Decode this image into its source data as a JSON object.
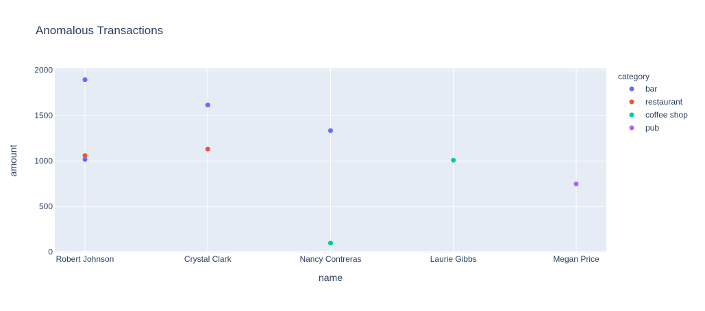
{
  "chart_data": {
    "type": "scatter",
    "title": "Anomalous Transactions",
    "xlabel": "name",
    "ylabel": "amount",
    "categories": [
      "Robert Johnson",
      "Crystal Clark",
      "Nancy Contreras",
      "Laurie Gibbs",
      "Megan Price"
    ],
    "ylim": [
      -10,
      2020
    ],
    "yticks": [
      0,
      500,
      1000,
      1500,
      2000
    ],
    "grid": true,
    "legend": {
      "title": "category",
      "placement": "right"
    },
    "series": [
      {
        "name": "bar",
        "color": "#636efa",
        "points": [
          {
            "x": "Robert Johnson",
            "y": 1895
          },
          {
            "x": "Robert Johnson",
            "y": 1018
          },
          {
            "x": "Crystal Clark",
            "y": 1617
          },
          {
            "x": "Nancy Contreras",
            "y": 1335
          }
        ]
      },
      {
        "name": "restaurant",
        "color": "#ef553b",
        "points": [
          {
            "x": "Robert Johnson",
            "y": 1060
          },
          {
            "x": "Crystal Clark",
            "y": 1132
          }
        ]
      },
      {
        "name": "coffee shop",
        "color": "#00cc96",
        "points": [
          {
            "x": "Nancy Contreras",
            "y": 98
          },
          {
            "x": "Laurie Gibbs",
            "y": 1010
          }
        ]
      },
      {
        "name": "pub",
        "color": "#ab63fa",
        "points": [
          {
            "x": "Megan Price",
            "y": 749
          }
        ]
      }
    ]
  },
  "colors": {
    "plot_bg": "#e5ecf6",
    "grid": "#ffffff",
    "text": "#2a3f5f"
  }
}
